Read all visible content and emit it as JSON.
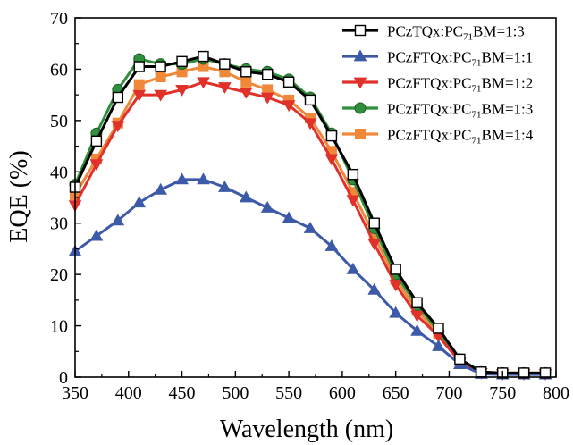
{
  "chart_data": {
    "type": "line",
    "xlabel": "Wavelength (nm)",
    "ylabel": "EQE (%)",
    "xlim": [
      350,
      800
    ],
    "ylim": [
      0,
      70
    ],
    "xticks": [
      350,
      400,
      450,
      500,
      550,
      600,
      650,
      700,
      750,
      800
    ],
    "yticks": [
      0,
      10,
      20,
      30,
      40,
      50,
      60,
      70
    ],
    "grid": false,
    "legend_position": "top-right",
    "x": [
      350,
      370,
      390,
      410,
      430,
      450,
      470,
      490,
      510,
      530,
      550,
      570,
      590,
      610,
      630,
      650,
      670,
      690,
      710,
      730,
      750,
      770,
      790
    ],
    "series": [
      {
        "name_prefix": "PCzTQx:PC",
        "name_sub": "71",
        "name_suffix": "BM=1:3",
        "color": "#000000",
        "marker": "square-open",
        "values": [
          37,
          46,
          54.5,
          60.5,
          60.5,
          61.5,
          62.5,
          61,
          59.5,
          59,
          57.5,
          54,
          47,
          39.5,
          30,
          21,
          14.5,
          9.5,
          3.5,
          1,
          0.8,
          0.8,
          0.8
        ]
      },
      {
        "name_prefix": "PCzFTQx:PC",
        "name_sub": "71",
        "name_suffix": "BM=1:1",
        "color": "#3d5aa9",
        "marker": "triangle-up",
        "values": [
          24.5,
          27.5,
          30.5,
          34,
          36.5,
          38.5,
          38.5,
          37,
          35,
          33,
          31,
          29,
          25.5,
          21,
          17,
          12.5,
          9,
          6,
          2.5,
          0.6,
          0.5,
          0.5,
          0.5
        ]
      },
      {
        "name_prefix": "PCzFTQx:PC",
        "name_sub": "71",
        "name_suffix": "BM=1:2",
        "color": "#e0312b",
        "marker": "triangle-down",
        "values": [
          33.5,
          41.5,
          49,
          55,
          55,
          56,
          57.5,
          56.5,
          55.5,
          54.5,
          53,
          49.5,
          42.5,
          34.5,
          26,
          18,
          12,
          8,
          3,
          0.8,
          0.6,
          0.6,
          0.6
        ]
      },
      {
        "name_prefix": "PCzFTQx:PC",
        "name_sub": "71",
        "name_suffix": "BM=1:3",
        "color": "#2f8f3a",
        "marker": "circle",
        "values": [
          37.5,
          47.5,
          56,
          62,
          61,
          61,
          62,
          61,
          60,
          59.5,
          58,
          54.5,
          47.5,
          38.5,
          29,
          20,
          14,
          9,
          3.5,
          1,
          0.8,
          0.8,
          0.8
        ]
      },
      {
        "name_prefix": "PCzFTQx:PC",
        "name_sub": "71",
        "name_suffix": "BM=1:4",
        "color": "#f0883a",
        "marker": "square",
        "values": [
          35.5,
          42.5,
          49.5,
          57,
          58.5,
          59.5,
          60.5,
          59.5,
          57.5,
          56,
          54,
          50.5,
          44,
          36,
          27.5,
          19,
          13,
          8.5,
          3,
          0.9,
          0.7,
          0.7,
          0.7
        ]
      }
    ]
  }
}
